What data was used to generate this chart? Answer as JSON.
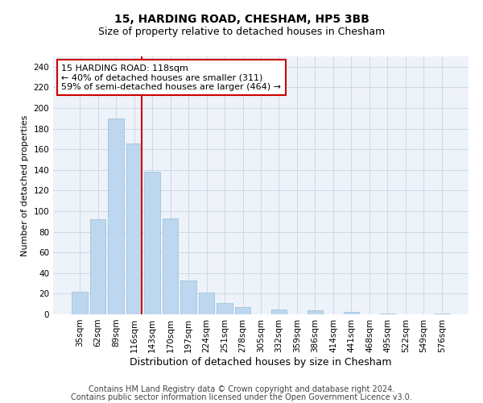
{
  "title": "15, HARDING ROAD, CHESHAM, HP5 3BB",
  "subtitle": "Size of property relative to detached houses in Chesham",
  "xlabel": "Distribution of detached houses by size in Chesham",
  "ylabel": "Number of detached properties",
  "categories": [
    "35sqm",
    "62sqm",
    "89sqm",
    "116sqm",
    "143sqm",
    "170sqm",
    "197sqm",
    "224sqm",
    "251sqm",
    "278sqm",
    "305sqm",
    "332sqm",
    "359sqm",
    "386sqm",
    "414sqm",
    "441sqm",
    "468sqm",
    "495sqm",
    "522sqm",
    "549sqm",
    "576sqm"
  ],
  "values": [
    22,
    92,
    190,
    166,
    138,
    93,
    33,
    21,
    11,
    7,
    0,
    5,
    0,
    4,
    0,
    2,
    0,
    1,
    0,
    0,
    1
  ],
  "bar_color": "#bdd7ee",
  "bar_edge_color": "#9fc5df",
  "highlight_line_color": "#cc0000",
  "annotation_box_text": "15 HARDING ROAD: 118sqm\n← 40% of detached houses are smaller (311)\n59% of semi-detached houses are larger (464) →",
  "annotation_box_color": "#cc0000",
  "ylim": [
    0,
    250
  ],
  "yticks": [
    0,
    20,
    40,
    60,
    80,
    100,
    120,
    140,
    160,
    180,
    200,
    220,
    240
  ],
  "grid_color": "#ccd9e8",
  "bg_color": "#eef2f9",
  "footer_line1": "Contains HM Land Registry data © Crown copyright and database right 2024.",
  "footer_line2": "Contains public sector information licensed under the Open Government Licence v3.0.",
  "title_fontsize": 10,
  "subtitle_fontsize": 9,
  "xlabel_fontsize": 9,
  "ylabel_fontsize": 8,
  "tick_fontsize": 7.5,
  "annotation_fontsize": 8,
  "footer_fontsize": 7
}
